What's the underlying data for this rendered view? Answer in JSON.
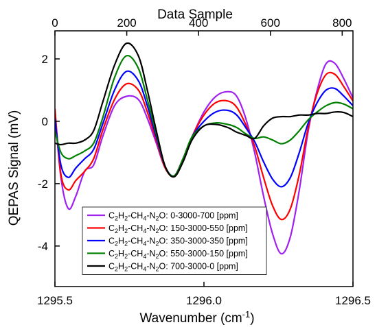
{
  "chart_data": {
    "type": "line",
    "xlabel": "Wavenumber (cm⁻¹)",
    "ylabel": "QEPAS Signal (mV)",
    "top_xlabel": "Data Sample",
    "xlim": [
      1295.5,
      1296.5
    ],
    "ylim": [
      -5.3,
      2.9
    ],
    "top_xlim": [
      0,
      830
    ],
    "x_ticks": [
      "1295.5",
      "1296.0",
      "1296.5"
    ],
    "y_ticks": [
      "-4",
      "-2",
      "0",
      "2"
    ],
    "top_ticks": [
      "0",
      "200",
      "400",
      "600",
      "800"
    ],
    "x_tick_values": [
      1295.5,
      1296.0,
      1296.5
    ],
    "y_tick_values": [
      -4,
      -2,
      0,
      2
    ],
    "top_tick_values": [
      0,
      200,
      400,
      600,
      800
    ],
    "grid": false,
    "legend_position": "bottom-left",
    "series": [
      {
        "name": "C2H2-CH4-N2O: 0-3000-700 [ppm]",
        "color": "#a020f0",
        "x": [
          1295.5,
          1295.52,
          1295.545,
          1295.57,
          1295.6,
          1295.63,
          1295.66,
          1295.7,
          1295.74,
          1295.78,
          1295.81,
          1295.84,
          1295.87,
          1295.9,
          1295.93,
          1295.96,
          1296.0,
          1296.04,
          1296.08,
          1296.11,
          1296.14,
          1296.17,
          1296.2,
          1296.23,
          1296.26,
          1296.29,
          1296.32,
          1296.35,
          1296.38,
          1296.41,
          1296.44,
          1296.47,
          1296.5
        ],
        "y": [
          0.3,
          -1.8,
          -2.8,
          -2.4,
          -1.6,
          -1.4,
          -0.5,
          0.5,
          0.8,
          0.7,
          0.1,
          -0.7,
          -1.5,
          -1.75,
          -1.2,
          -0.5,
          0.3,
          0.8,
          0.95,
          0.8,
          0.1,
          -1.0,
          -2.4,
          -3.6,
          -4.25,
          -3.7,
          -2.2,
          -0.3,
          1.0,
          1.85,
          1.85,
          1.35,
          0.75
        ]
      },
      {
        "name": "C2H2-CH4-N2O: 150-3000-550 [ppm]",
        "color": "#ff0000",
        "x": [
          1295.5,
          1295.52,
          1295.545,
          1295.57,
          1295.6,
          1295.63,
          1295.66,
          1295.7,
          1295.74,
          1295.78,
          1295.81,
          1295.84,
          1295.87,
          1295.9,
          1295.93,
          1295.96,
          1296.0,
          1296.04,
          1296.08,
          1296.11,
          1296.14,
          1296.17,
          1296.2,
          1296.23,
          1296.26,
          1296.29,
          1296.32,
          1296.35,
          1296.38,
          1296.41,
          1296.44,
          1296.47,
          1296.5
        ],
        "y": [
          0.4,
          -1.7,
          -2.2,
          -1.9,
          -1.6,
          -1.2,
          -0.3,
          0.7,
          1.2,
          1.0,
          0.3,
          -0.6,
          -1.5,
          -1.75,
          -1.2,
          -0.5,
          0.2,
          0.6,
          0.65,
          0.45,
          -0.1,
          -0.8,
          -1.8,
          -2.7,
          -3.15,
          -2.8,
          -1.7,
          -0.2,
          0.9,
          1.5,
          1.5,
          1.1,
          0.65
        ]
      },
      {
        "name": "C2H2-CH4-N2O: 350-3000-350 [ppm]",
        "color": "#0000ff",
        "x": [
          1295.5,
          1295.52,
          1295.545,
          1295.57,
          1295.6,
          1295.63,
          1295.66,
          1295.7,
          1295.74,
          1295.78,
          1295.81,
          1295.84,
          1295.87,
          1295.9,
          1295.93,
          1295.96,
          1296.0,
          1296.04,
          1296.08,
          1296.11,
          1296.14,
          1296.17,
          1296.2,
          1296.23,
          1296.26,
          1296.29,
          1296.32,
          1296.35,
          1296.38,
          1296.41,
          1296.44,
          1296.47,
          1296.5
        ],
        "y": [
          0.1,
          -1.4,
          -1.8,
          -1.5,
          -1.2,
          -0.9,
          -0.1,
          1.0,
          1.6,
          1.3,
          0.5,
          -0.5,
          -1.45,
          -1.75,
          -1.2,
          -0.5,
          0.0,
          0.3,
          0.35,
          0.2,
          -0.2,
          -0.65,
          -1.3,
          -1.85,
          -2.1,
          -1.8,
          -1.0,
          -0.05,
          0.6,
          1.0,
          1.05,
          0.8,
          0.5
        ]
      },
      {
        "name": "C2H2-CH4-N2O: 550-3000-150 [ppm]",
        "color": "#008000",
        "x": [
          1295.5,
          1295.52,
          1295.545,
          1295.57,
          1295.6,
          1295.63,
          1295.66,
          1295.7,
          1295.74,
          1295.78,
          1295.81,
          1295.84,
          1295.87,
          1295.9,
          1295.93,
          1295.96,
          1296.0,
          1296.04,
          1296.08,
          1296.11,
          1296.14,
          1296.17,
          1296.2,
          1296.23,
          1296.26,
          1296.29,
          1296.32,
          1296.35,
          1296.38,
          1296.41,
          1296.44,
          1296.47,
          1296.5
        ],
        "y": [
          -0.3,
          -1.0,
          -1.2,
          -1.1,
          -0.95,
          -0.7,
          0.1,
          1.4,
          2.1,
          1.7,
          0.7,
          -0.4,
          -1.45,
          -1.75,
          -1.2,
          -0.5,
          -0.15,
          -0.05,
          -0.1,
          -0.2,
          -0.4,
          -0.55,
          -0.5,
          -0.6,
          -0.72,
          -0.6,
          -0.3,
          0.05,
          0.3,
          0.5,
          0.6,
          0.55,
          0.4
        ]
      },
      {
        "name": "C2H2-CH4-N2O: 700-3000-0 [ppm]",
        "color": "#000000",
        "x": [
          1295.5,
          1295.52,
          1295.545,
          1295.57,
          1295.6,
          1295.63,
          1295.66,
          1295.7,
          1295.74,
          1295.78,
          1295.81,
          1295.84,
          1295.87,
          1295.9,
          1295.93,
          1295.96,
          1296.0,
          1296.04,
          1296.08,
          1296.11,
          1296.14,
          1296.17,
          1296.2,
          1296.23,
          1296.26,
          1296.29,
          1296.32,
          1296.35,
          1296.38,
          1296.41,
          1296.44,
          1296.47,
          1296.5
        ],
        "y": [
          -0.7,
          -0.75,
          -0.7,
          -0.7,
          -0.6,
          -0.3,
          0.6,
          1.8,
          2.5,
          2.1,
          1.0,
          -0.3,
          -1.45,
          -1.78,
          -1.3,
          -0.6,
          -0.15,
          -0.1,
          -0.2,
          -0.35,
          -0.45,
          -0.55,
          -0.15,
          0.1,
          0.15,
          0.15,
          0.2,
          0.2,
          0.25,
          0.25,
          0.3,
          0.28,
          0.15
        ]
      }
    ]
  },
  "legend": [
    {
      "formula": [
        "C",
        "2",
        "H",
        "2",
        "-CH",
        "4",
        "-N",
        "2",
        "O"
      ],
      "label": ": 0-3000-700 [ppm]",
      "color": "#a020f0"
    },
    {
      "formula": [
        "C",
        "2",
        "H",
        "2",
        "-CH",
        "4",
        "-N",
        "2",
        "O"
      ],
      "label": ": 150-3000-550 [ppm]",
      "color": "#ff0000"
    },
    {
      "formula": [
        "C",
        "2",
        "H",
        "2",
        "-CH",
        "4",
        "-N",
        "2",
        "O"
      ],
      "label": ": 350-3000-350 [ppm]",
      "color": "#0000ff"
    },
    {
      "formula": [
        "C",
        "2",
        "H",
        "2",
        "-CH",
        "4",
        "-N",
        "2",
        "O"
      ],
      "label": ": 550-3000-150 [ppm]",
      "color": "#008000"
    },
    {
      "formula": [
        "C",
        "2",
        "H",
        "2",
        "-CH",
        "4",
        "-N",
        "2",
        "O"
      ],
      "label": ": 700-3000-0 [ppm]",
      "color": "#000000"
    }
  ]
}
